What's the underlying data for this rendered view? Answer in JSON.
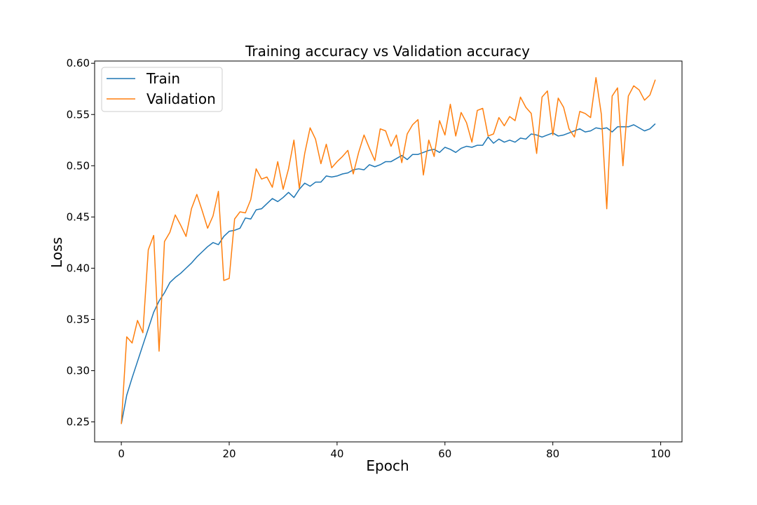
{
  "chart_data": {
    "type": "line",
    "title": "Training accuracy vs Validation accuracy",
    "xlabel": "Epoch",
    "ylabel": "Loss",
    "xlim": [
      -4.95,
      103.95
    ],
    "ylim": [
      0.2305,
      0.6022
    ],
    "xticks": [
      0,
      20,
      40,
      60,
      80,
      100
    ],
    "yticks": [
      0.25,
      0.3,
      0.35,
      0.4,
      0.45,
      0.5,
      0.55,
      0.6
    ],
    "grid": false,
    "legend": "upper left",
    "x": [
      0,
      1,
      2,
      3,
      4,
      5,
      6,
      7,
      8,
      9,
      10,
      11,
      12,
      13,
      14,
      15,
      16,
      17,
      18,
      19,
      20,
      21,
      22,
      23,
      24,
      25,
      26,
      27,
      28,
      29,
      30,
      31,
      32,
      33,
      34,
      35,
      36,
      37,
      38,
      39,
      40,
      41,
      42,
      43,
      44,
      45,
      46,
      47,
      48,
      49,
      50,
      51,
      52,
      53,
      54,
      55,
      56,
      57,
      58,
      59,
      60,
      61,
      62,
      63,
      64,
      65,
      66,
      67,
      68,
      69,
      70,
      71,
      72,
      73,
      74,
      75,
      76,
      77,
      78,
      79,
      80,
      81,
      82,
      83,
      84,
      85,
      86,
      87,
      88,
      89,
      90,
      91,
      92,
      93,
      94,
      95,
      96,
      97,
      98,
      99
    ],
    "series": [
      {
        "name": "Train",
        "color": "#1f77b4",
        "values": [
          0.248,
          0.276,
          0.293,
          0.309,
          0.325,
          0.341,
          0.357,
          0.368,
          0.376,
          0.386,
          0.391,
          0.395,
          0.4,
          0.405,
          0.411,
          0.416,
          0.421,
          0.425,
          0.423,
          0.431,
          0.436,
          0.437,
          0.439,
          0.449,
          0.448,
          0.457,
          0.458,
          0.463,
          0.468,
          0.465,
          0.469,
          0.474,
          0.469,
          0.477,
          0.483,
          0.48,
          0.484,
          0.484,
          0.49,
          0.489,
          0.49,
          0.492,
          0.493,
          0.496,
          0.497,
          0.496,
          0.501,
          0.499,
          0.501,
          0.504,
          0.504,
          0.507,
          0.51,
          0.506,
          0.511,
          0.511,
          0.513,
          0.515,
          0.516,
          0.513,
          0.518,
          0.516,
          0.513,
          0.517,
          0.519,
          0.518,
          0.52,
          0.52,
          0.528,
          0.522,
          0.526,
          0.523,
          0.525,
          0.523,
          0.527,
          0.526,
          0.531,
          0.53,
          0.528,
          0.53,
          0.532,
          0.529,
          0.53,
          0.532,
          0.534,
          0.536,
          0.533,
          0.534,
          0.537,
          0.536,
          0.537,
          0.533,
          0.538,
          0.538,
          0.538,
          0.54,
          0.537,
          0.534,
          0.536,
          0.541
        ]
      },
      {
        "name": "Validation",
        "color": "#ff7f0e",
        "values": [
          0.248,
          0.333,
          0.327,
          0.349,
          0.337,
          0.418,
          0.432,
          0.319,
          0.426,
          0.435,
          0.452,
          0.442,
          0.431,
          0.458,
          0.472,
          0.456,
          0.439,
          0.451,
          0.475,
          0.388,
          0.39,
          0.448,
          0.455,
          0.454,
          0.467,
          0.497,
          0.487,
          0.489,
          0.479,
          0.504,
          0.477,
          0.497,
          0.525,
          0.478,
          0.512,
          0.537,
          0.526,
          0.502,
          0.521,
          0.498,
          0.504,
          0.509,
          0.515,
          0.492,
          0.513,
          0.53,
          0.517,
          0.505,
          0.536,
          0.534,
          0.519,
          0.53,
          0.503,
          0.531,
          0.54,
          0.545,
          0.491,
          0.525,
          0.509,
          0.544,
          0.53,
          0.56,
          0.529,
          0.552,
          0.542,
          0.523,
          0.554,
          0.556,
          0.529,
          0.531,
          0.547,
          0.539,
          0.548,
          0.544,
          0.567,
          0.557,
          0.551,
          0.512,
          0.567,
          0.573,
          0.53,
          0.566,
          0.557,
          0.536,
          0.528,
          0.553,
          0.551,
          0.547,
          0.586,
          0.55,
          0.458,
          0.568,
          0.576,
          0.5,
          0.568,
          0.578,
          0.574,
          0.564,
          0.569,
          0.584
        ]
      }
    ]
  }
}
